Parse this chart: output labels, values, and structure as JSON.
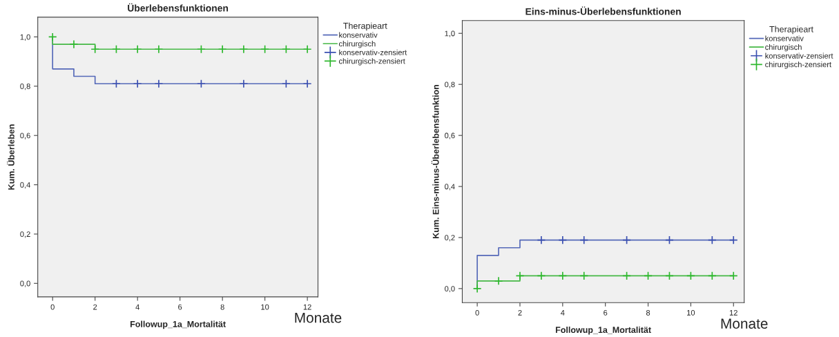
{
  "chart_data": [
    {
      "type": "step",
      "title": "Überlebensfunktionen",
      "xlabel": "Followup_1a_Mortalität",
      "ylabel": "Kum. Überleben",
      "legend_title": "Therapieart",
      "legend": "right",
      "grid": false,
      "annotations": [
        "Monate"
      ],
      "xlim": [
        -0.7,
        12.5
      ],
      "xticks": [
        0,
        2,
        4,
        6,
        8,
        10,
        12
      ],
      "ylim": [
        -0.055,
        1.08
      ],
      "yticks": [
        {
          "value": 0.0,
          "label": "0,0"
        },
        {
          "value": 0.2,
          "label": "0,2"
        },
        {
          "value": 0.4,
          "label": "0,4"
        },
        {
          "value": 0.6,
          "label": "0,6"
        },
        {
          "value": 0.8,
          "label": "0,8"
        },
        {
          "value": 1.0,
          "label": "1,0"
        }
      ],
      "series": [
        {
          "name": "konservativ",
          "color": "#5468b8",
          "x": [
            0,
            0,
            1,
            2,
            12
          ],
          "values": [
            1.0,
            0.87,
            0.84,
            0.81,
            0.81
          ]
        },
        {
          "name": "chirurgisch",
          "color": "#45b845",
          "x": [
            0,
            0,
            2,
            12
          ],
          "values": [
            1.0,
            0.97,
            0.95,
            0.95
          ]
        },
        {
          "name": "konservativ-zensiert",
          "type": "scatter",
          "marker": "cross",
          "color": "#3a4fb0",
          "x": [
            3,
            4,
            5,
            7,
            9,
            11,
            12
          ],
          "values": [
            0.81,
            0.81,
            0.81,
            0.81,
            0.81,
            0.81,
            0.81
          ]
        },
        {
          "name": "chirurgisch-zensiert",
          "type": "scatter",
          "marker": "cross",
          "color": "#2eb82e",
          "x": [
            0,
            1,
            2,
            3,
            4,
            5,
            7,
            8,
            9,
            10,
            11,
            12
          ],
          "values": [
            1.0,
            0.97,
            0.95,
            0.95,
            0.95,
            0.95,
            0.95,
            0.95,
            0.95,
            0.95,
            0.95,
            0.95
          ]
        }
      ]
    },
    {
      "type": "step",
      "title": "Eins-minus-Überlebensfunktionen",
      "xlabel": "Followup_1a_Mortalität",
      "ylabel": "Kum. Eins-minus-Überlebensfunktion",
      "legend_title": "Therapieart",
      "legend": "right",
      "grid": false,
      "annotations": [
        "Monate"
      ],
      "xlim": [
        -0.7,
        12.5
      ],
      "xticks": [
        0,
        2,
        4,
        6,
        8,
        10,
        12
      ],
      "ylim": [
        -0.055,
        1.05
      ],
      "yticks": [
        {
          "value": 0.0,
          "label": "0,0"
        },
        {
          "value": 0.2,
          "label": "0,2"
        },
        {
          "value": 0.4,
          "label": "0,4"
        },
        {
          "value": 0.6,
          "label": "0,6"
        },
        {
          "value": 0.8,
          "label": "0,8"
        },
        {
          "value": 1.0,
          "label": "1,0"
        }
      ],
      "series": [
        {
          "name": "konservativ",
          "color": "#5468b8",
          "x": [
            0,
            0,
            1,
            2,
            12
          ],
          "values": [
            0.0,
            0.13,
            0.16,
            0.19,
            0.19
          ]
        },
        {
          "name": "chirurgisch",
          "color": "#45b845",
          "x": [
            0,
            0,
            2,
            12
          ],
          "values": [
            0.0,
            0.03,
            0.05,
            0.05
          ]
        },
        {
          "name": "konservativ-zensiert",
          "type": "scatter",
          "marker": "cross",
          "color": "#3a4fb0",
          "x": [
            3,
            4,
            5,
            7,
            9,
            11,
            12
          ],
          "values": [
            0.19,
            0.19,
            0.19,
            0.19,
            0.19,
            0.19,
            0.19
          ]
        },
        {
          "name": "chirurgisch-zensiert",
          "type": "scatter",
          "marker": "cross",
          "color": "#2eb82e",
          "x": [
            0,
            1,
            2,
            3,
            4,
            5,
            7,
            8,
            9,
            10,
            11,
            12
          ],
          "values": [
            0.0,
            0.03,
            0.05,
            0.05,
            0.05,
            0.05,
            0.05,
            0.05,
            0.05,
            0.05,
            0.05,
            0.05
          ]
        }
      ]
    }
  ]
}
